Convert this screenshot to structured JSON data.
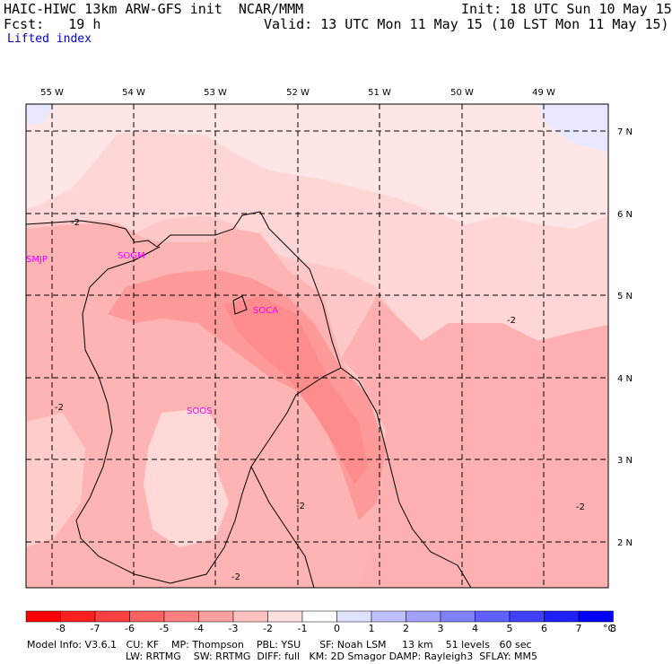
{
  "header": {
    "line1_left": "HAIC-HIWC 13km ARW-GFS init  NCAR/MMM",
    "line1_right": "Init: 18 UTC Sun 10 May 15",
    "line2_left": "Fcst:   19 h",
    "line2_right": "Valid: 13 UTC Mon 11 May 15 (10 LST Mon 11 May 15)",
    "field": "Lifted index"
  },
  "map": {
    "lon_labels": [
      "55 W",
      "54 W",
      "53 W",
      "52 W",
      "51 W",
      "50 W",
      "49 W"
    ],
    "lat_labels": [
      "7 N",
      "6 N",
      "5 N",
      "4 N",
      "3 N",
      "2 N"
    ],
    "stations": [
      "SMJP",
      "SOGM",
      "SOCA",
      "SOOS"
    ],
    "contour_label": "-2",
    "colors": {
      "bg_light": "#ffe6e6",
      "mid": "#ffc8c8",
      "strong": "#ffaaaa",
      "stronger": "#ff8c8c",
      "blueish": "#e8e8ff"
    }
  },
  "colorbar": {
    "values": [
      "-8",
      "-7",
      "-6",
      "-5",
      "-4",
      "-3",
      "-2",
      "-1",
      "0",
      "1",
      "2",
      "3",
      "4",
      "5",
      "6",
      "7",
      "8"
    ],
    "unit": "°C",
    "colors": [
      "#ff0000",
      "#ff2020",
      "#ff4040",
      "#ff6060",
      "#ff8080",
      "#ffa0a0",
      "#ffc0c0",
      "#ffe0e0",
      "#ffffff",
      "#e0e0ff",
      "#c0c0ff",
      "#a0a0ff",
      "#8080ff",
      "#6060ff",
      "#4040ff",
      "#2020ff",
      "#0000ff"
    ]
  },
  "footer": {
    "line1": "Model Info: V3.6.1   CU: KF    MP: Thompson    PBL: YSU      SF: Noah LSM     13 km    51 levels   60 sec",
    "line2": "LW: RRTMG    SW: RRTMG  DIFF: full   KM: 2D Smagor DAMP: Rayleigh3  SFLAY: MM5"
  }
}
